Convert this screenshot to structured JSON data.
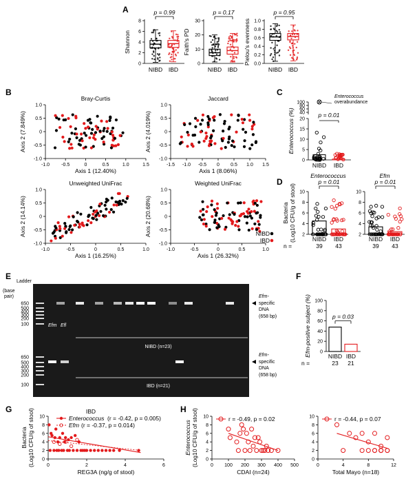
{
  "panel_labels": {
    "A": "A",
    "B": "B",
    "C": "C",
    "D": "D",
    "E": "E",
    "F": "F",
    "G": "G",
    "H": "H"
  },
  "colors": {
    "nibd": "#000000",
    "ibd": "#e31a1c"
  },
  "panelA": [
    {
      "ylabel": "Shannon",
      "pvalue": "p = 0.99",
      "yticks": [
        "0",
        "2",
        "4",
        "6",
        "8"
      ],
      "groups": [
        "NIBD",
        "IBD"
      ]
    },
    {
      "ylabel": "Faith's PD",
      "pvalue": "p = 0.17",
      "yticks": [
        "0",
        "10",
        "20",
        "30"
      ],
      "groups": [
        "NIBD",
        "IBD"
      ]
    },
    {
      "ylabel": "Pielou's evenness",
      "pvalue": "p = 0.95",
      "yticks": [
        "0.0",
        "0.2",
        "0.4",
        "0.6",
        "0.8",
        "1.0"
      ],
      "groups": [
        "NIBD",
        "IBD"
      ]
    }
  ],
  "panelB": {
    "plots": [
      {
        "title": "Bray-Curtis",
        "xlabel": "Axis 1 (12.40%)",
        "ylabel": "Axis 2 (7.849%)",
        "xticks": [
          "-1.0",
          "-0.5",
          "0",
          "0.5",
          "1.0",
          "1.5"
        ],
        "yticks": [
          "-1.0",
          "-0.5",
          "0",
          "0.5",
          "1.0"
        ]
      },
      {
        "title": "Jaccard",
        "xlabel": "Axis 1 (8.06%)",
        "ylabel": "Axis 2 (4.019%)",
        "xticks": [
          "-1.5",
          "-1.0",
          "-0.5",
          "0",
          "0.5",
          "1.0",
          "1.5"
        ],
        "yticks": [
          "-1.0",
          "-0.5",
          "0",
          "0.5",
          "1.0"
        ]
      },
      {
        "title": "Unweighted UniFrac",
        "xlabel": "Axis 1 (16.25%)",
        "ylabel": "Axis 2 (14.14%)",
        "xticks": [
          "-1.0",
          "-0.5",
          "0",
          "0.5",
          "1.0"
        ],
        "yticks": [
          "-1.0",
          "-0.5",
          "0",
          "0.5",
          "1.0"
        ]
      },
      {
        "title": "Weighted UniFrac",
        "xlabel": "Axis 1 (26.32%)",
        "ylabel": "Axis 2 (20.68%)",
        "xticks": [
          "-1.0",
          "-0.5",
          "0",
          "0.5",
          "1.0"
        ],
        "yticks": [
          "-1.0",
          "-0.5",
          "0",
          "0.5",
          "1.0"
        ]
      }
    ],
    "legend": [
      "NIBD",
      "IBD"
    ]
  },
  "panelC": {
    "ylabel": "Enterococcus (%)",
    "pvalue": "p = 0.01",
    "annotation": "Enterococcus overabundance",
    "yticks": [
      "0",
      "5",
      "10",
      "15",
      "20",
      "40",
      "60",
      "80",
      "100"
    ],
    "groups": [
      "NIBD",
      "IBD"
    ]
  },
  "panelD": {
    "ylabel": "Bacteria (Log10 CFU/g of stool)",
    "plots": [
      {
        "title": "Enterococcus",
        "pvalue": "p = 0.01",
        "yticks": [
          "2",
          "4",
          "6",
          "8",
          "10"
        ]
      },
      {
        "title": "Efm",
        "pvalue": "p = 0.01",
        "yticks": [
          "2",
          "4",
          "6",
          "8",
          "10"
        ]
      }
    ],
    "groups": [
      "NIBD",
      "IBD"
    ],
    "n_label": "n =",
    "n": [
      "39",
      "43",
      "39",
      "43"
    ]
  },
  "panelE": {
    "ladder": "Ladder",
    "base_pair": "(base pair)",
    "ladder_ticks": [
      "650",
      "500",
      "400",
      "300",
      "200",
      "100"
    ],
    "top_group": "NIBD (n=23)",
    "bottom_group": "IBD (n=21)",
    "lane_labels": [
      "Efm",
      "Efl"
    ],
    "annotation": [
      "Efm-",
      "specific",
      "DNA",
      "(658 bp)"
    ]
  },
  "panelF": {
    "ylabel": "Efm-positive subject (%)",
    "pvalue": "p = 0.03",
    "yticks": [
      "0",
      "20",
      "40",
      "60",
      "80",
      "100"
    ],
    "groups": [
      "NIBD",
      "IBD"
    ],
    "values": [
      47.8,
      14.3
    ],
    "n_label": "n =",
    "n": [
      "23",
      "21"
    ]
  },
  "panelG": {
    "title": "IBD",
    "ylabel": "Bacteria (Log10 CFU/g of stool)",
    "xlabel": "REG3A (ng/g of stool)",
    "legend": [
      {
        "name": "Enterococcus",
        "stat": "(r = -0.42, p = 0.005)"
      },
      {
        "name": "Efm",
        "stat": "(r = -0.37, p = 0.014)"
      }
    ],
    "xticks": [
      "0",
      "2",
      "4",
      "6"
    ],
    "yticks": [
      "0",
      "2",
      "4",
      "6",
      "8",
      "10"
    ]
  },
  "panelH": {
    "ylabel": "Enterococcus (Log10 CFU/g of stool)",
    "plots": [
      {
        "legend": "r = -0.49, p = 0.02",
        "xlabel": "CDAI (n=24)",
        "xticks": [
          "0",
          "100",
          "200",
          "300",
          "400",
          "500"
        ]
      },
      {
        "legend": "r = -0.44, p = 0.07",
        "xlabel": "Total Mayo (n=18)",
        "xticks": [
          "0",
          "4",
          "8",
          "12"
        ]
      }
    ],
    "yticks": [
      "0",
      "2",
      "4",
      "6",
      "8",
      "10"
    ]
  },
  "chart_data": [
    {
      "type": "box",
      "id": "A-shannon",
      "categories": [
        "NIBD",
        "IBD"
      ],
      "ylabel": "Shannon",
      "ylim": [
        0,
        8
      ],
      "series": [
        {
          "name": "NIBD",
          "q1": 2.9,
          "median": 3.6,
          "q3": 4.3,
          "whisker_low": 0.2,
          "whisker_high": 6.3
        },
        {
          "name": "IBD",
          "q1": 3.0,
          "median": 3.7,
          "q3": 4.3,
          "whisker_low": 0.3,
          "whisker_high": 6.1
        }
      ]
    },
    {
      "type": "box",
      "id": "A-faith",
      "categories": [
        "NIBD",
        "IBD"
      ],
      "ylabel": "Faith's PD",
      "ylim": [
        0,
        30
      ],
      "series": [
        {
          "name": "NIBD",
          "q1": 5.5,
          "median": 7.5,
          "q3": 10,
          "whisker_low": 1,
          "whisker_high": 20
        },
        {
          "name": "IBD",
          "q1": 6.5,
          "median": 9,
          "q3": 11.5,
          "whisker_low": 1,
          "whisker_high": 21
        }
      ]
    },
    {
      "type": "box",
      "id": "A-pielou",
      "categories": [
        "NIBD",
        "IBD"
      ],
      "ylabel": "Pielou's evenness",
      "ylim": [
        0,
        1
      ],
      "series": [
        {
          "name": "NIBD",
          "q1": 0.54,
          "median": 0.62,
          "q3": 0.7,
          "whisker_low": 0.05,
          "whisker_high": 0.93
        },
        {
          "name": "IBD",
          "q1": 0.55,
          "median": 0.63,
          "q3": 0.7,
          "whisker_low": 0.06,
          "whisker_high": 0.9
        }
      ]
    },
    {
      "type": "bar",
      "id": "C",
      "categories": [
        "NIBD",
        "IBD"
      ],
      "values": [
        2.5,
        0.4
      ],
      "ylabel": "Enterococcus (%)"
    },
    {
      "type": "bar",
      "id": "D-enterococcus",
      "categories": [
        "NIBD",
        "IBD"
      ],
      "values": [
        4.5,
        3.0
      ],
      "ylim": [
        2,
        10
      ]
    },
    {
      "type": "bar",
      "id": "D-efm",
      "categories": [
        "NIBD",
        "IBD"
      ],
      "values": [
        3.4,
        2.5
      ],
      "ylim": [
        2,
        10
      ]
    },
    {
      "type": "bar",
      "id": "F",
      "categories": [
        "NIBD",
        "IBD"
      ],
      "values": [
        47.8,
        14.3
      ],
      "ylim": [
        0,
        100
      ]
    },
    {
      "type": "scatter",
      "id": "G",
      "xlim": [
        0,
        6
      ],
      "ylim": [
        0,
        10
      ],
      "series": [
        {
          "name": "Enterococcus",
          "points": [
            [
              0.05,
              8
            ],
            [
              0.1,
              2
            ],
            [
              0.15,
              6
            ],
            [
              0.2,
              5.5
            ],
            [
              0.3,
              2
            ],
            [
              0.35,
              5
            ],
            [
              0.4,
              7
            ],
            [
              0.45,
              2
            ],
            [
              0.5,
              4
            ],
            [
              0.55,
              2
            ],
            [
              0.6,
              5
            ],
            [
              0.7,
              2
            ],
            [
              0.75,
              6
            ],
            [
              0.8,
              2
            ],
            [
              0.85,
              4
            ],
            [
              0.9,
              5
            ],
            [
              1.0,
              2
            ],
            [
              1.05,
              4.5
            ],
            [
              1.1,
              2
            ],
            [
              1.2,
              5
            ],
            [
              1.3,
              2
            ],
            [
              1.4,
              5.5
            ],
            [
              1.5,
              2
            ],
            [
              1.6,
              4
            ],
            [
              1.7,
              2
            ],
            [
              1.8,
              2
            ],
            [
              1.9,
              2
            ],
            [
              2.0,
              2
            ],
            [
              2.2,
              2
            ],
            [
              2.4,
              2
            ],
            [
              2.6,
              2
            ],
            [
              2.8,
              2
            ],
            [
              3.0,
              2
            ],
            [
              3.2,
              2
            ],
            [
              3.4,
              2
            ],
            [
              3.7,
              2
            ],
            [
              4.7,
              2
            ]
          ]
        },
        {
          "name": "Efm",
          "points": [
            [
              0.3,
              4
            ],
            [
              0.6,
              3.5
            ],
            [
              0.9,
              4
            ],
            [
              1.2,
              3
            ],
            [
              1.5,
              4.5
            ]
          ]
        }
      ]
    },
    {
      "type": "scatter",
      "id": "H-CDAI",
      "xlim": [
        0,
        500
      ],
      "ylim": [
        0,
        10
      ],
      "series": [
        {
          "name": "Enterococcus",
          "points": [
            [
              100,
              7
            ],
            [
              110,
              5
            ],
            [
              150,
              4
            ],
            [
              160,
              2
            ],
            [
              170,
              6
            ],
            [
              180,
              8
            ],
            [
              190,
              7
            ],
            [
              200,
              2
            ],
            [
              210,
              6
            ],
            [
              220,
              4
            ],
            [
              230,
              2
            ],
            [
              240,
              7
            ],
            [
              250,
              3
            ],
            [
              260,
              5
            ],
            [
              270,
              2
            ],
            [
              280,
              5
            ],
            [
              290,
              4
            ],
            [
              300,
              2
            ],
            [
              310,
              2
            ],
            [
              320,
              2
            ],
            [
              330,
              3
            ],
            [
              340,
              2
            ],
            [
              360,
              2
            ],
            [
              400,
              2
            ]
          ]
        }
      ]
    },
    {
      "type": "scatter",
      "id": "H-Mayo",
      "xlim": [
        0,
        12
      ],
      "ylim": [
        0,
        10
      ],
      "series": [
        {
          "name": "Enterococcus",
          "points": [
            [
              3,
              8
            ],
            [
              4,
              2
            ],
            [
              5,
              6
            ],
            [
              6,
              5
            ],
            [
              7,
              6
            ],
            [
              7,
              2
            ],
            [
              8,
              2
            ],
            [
              8,
              4
            ],
            [
              9,
              6
            ],
            [
              9,
              2
            ],
            [
              10,
              2
            ],
            [
              10,
              3
            ],
            [
              10,
              2
            ],
            [
              11,
              5
            ],
            [
              11,
              2
            ],
            [
              11,
              2
            ],
            [
              10,
              2
            ],
            [
              9,
              2
            ]
          ]
        }
      ]
    }
  ]
}
